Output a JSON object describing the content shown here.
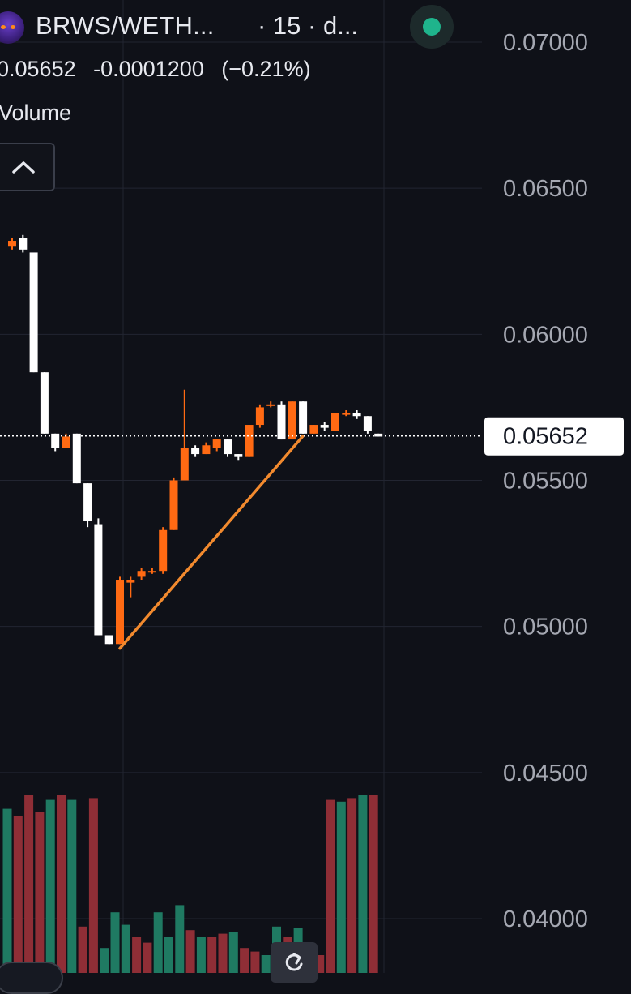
{
  "header": {
    "pair_title": "BRWS/WETH...",
    "interval_text": "· 15 · d...",
    "status_color": "#1fb48c",
    "avatar_icon": "robot-avatar-icon"
  },
  "ohlc": {
    "price": "0.05652",
    "change": "-0.0001200",
    "change_pct": "(−0.21%)"
  },
  "volume_label": "Volume",
  "controls": {
    "collapse_icon": "chevron-up-icon",
    "reset_icon": "reset-rotate-icon"
  },
  "colors": {
    "background": "#0f1118",
    "up_candle": "#ff6a13",
    "down_candle": "#ffffff",
    "volume_up": "#1f7a62",
    "volume_down": "#8f2e36",
    "trendline": "#f28a2e",
    "grid": "#222531",
    "axis_text": "#a5a8b2"
  },
  "chart_data": {
    "type": "candlestick",
    "y_axis": {
      "ticks": [
        "0.07000",
        "0.06500",
        "0.06000",
        "0.05500",
        "0.05000",
        "0.04500",
        "0.04000"
      ],
      "range": [
        0.0385,
        0.0715
      ]
    },
    "current_price_label": "0.05652",
    "candles": [
      {
        "o": 0.063,
        "h": 0.0633,
        "l": 0.0629,
        "c": 0.0632
      },
      {
        "o": 0.0633,
        "h": 0.0634,
        "l": 0.0628,
        "c": 0.0629
      },
      {
        "o": 0.0628,
        "h": 0.0628,
        "l": 0.0587,
        "c": 0.0587
      },
      {
        "o": 0.0587,
        "h": 0.0587,
        "l": 0.0566,
        "c": 0.0566
      },
      {
        "o": 0.0566,
        "h": 0.0566,
        "l": 0.056,
        "c": 0.0561
      },
      {
        "o": 0.0561,
        "h": 0.0566,
        "l": 0.0561,
        "c": 0.0565
      },
      {
        "o": 0.0566,
        "h": 0.0566,
        "l": 0.0549,
        "c": 0.0549
      },
      {
        "o": 0.0549,
        "h": 0.0549,
        "l": 0.0534,
        "c": 0.0536
      },
      {
        "o": 0.0535,
        "h": 0.0537,
        "l": 0.0497,
        "c": 0.0497
      },
      {
        "o": 0.0497,
        "h": 0.0497,
        "l": 0.0494,
        "c": 0.0494
      },
      {
        "o": 0.0494,
        "h": 0.0517,
        "l": 0.0494,
        "c": 0.0516
      },
      {
        "o": 0.0515,
        "h": 0.0517,
        "l": 0.051,
        "c": 0.0516
      },
      {
        "o": 0.0517,
        "h": 0.052,
        "l": 0.0516,
        "c": 0.0519
      },
      {
        "o": 0.0519,
        "h": 0.052,
        "l": 0.0518,
        "c": 0.0519
      },
      {
        "o": 0.0519,
        "h": 0.0534,
        "l": 0.0518,
        "c": 0.0533
      },
      {
        "o": 0.0533,
        "h": 0.0551,
        "l": 0.0533,
        "c": 0.055
      },
      {
        "o": 0.055,
        "h": 0.0581,
        "l": 0.055,
        "c": 0.0561
      },
      {
        "o": 0.0561,
        "h": 0.0562,
        "l": 0.0558,
        "c": 0.0559
      },
      {
        "o": 0.0559,
        "h": 0.0563,
        "l": 0.0559,
        "c": 0.0562
      },
      {
        "o": 0.0561,
        "h": 0.0564,
        "l": 0.056,
        "c": 0.0564
      },
      {
        "o": 0.0564,
        "h": 0.0564,
        "l": 0.0558,
        "c": 0.0559
      },
      {
        "o": 0.0559,
        "h": 0.0559,
        "l": 0.0557,
        "c": 0.0558
      },
      {
        "o": 0.0558,
        "h": 0.0569,
        "l": 0.0558,
        "c": 0.0569
      },
      {
        "o": 0.0569,
        "h": 0.0576,
        "l": 0.0568,
        "c": 0.0575
      },
      {
        "o": 0.0576,
        "h": 0.0577,
        "l": 0.0575,
        "c": 0.0576
      },
      {
        "o": 0.0576,
        "h": 0.0577,
        "l": 0.0564,
        "c": 0.0564
      },
      {
        "o": 0.0564,
        "h": 0.0577,
        "l": 0.0564,
        "c": 0.0577
      },
      {
        "o": 0.0577,
        "h": 0.0577,
        "l": 0.0566,
        "c": 0.0566
      },
      {
        "o": 0.0566,
        "h": 0.0569,
        "l": 0.0566,
        "c": 0.0569
      },
      {
        "o": 0.0569,
        "h": 0.057,
        "l": 0.0567,
        "c": 0.0568
      },
      {
        "o": 0.0567,
        "h": 0.0573,
        "l": 0.0567,
        "c": 0.0573
      },
      {
        "o": 0.0573,
        "h": 0.0574,
        "l": 0.0572,
        "c": 0.0573
      },
      {
        "o": 0.0573,
        "h": 0.0574,
        "l": 0.0571,
        "c": 0.0572
      },
      {
        "o": 0.0572,
        "h": 0.0572,
        "l": 0.0566,
        "c": 0.0567
      },
      {
        "o": 0.0566,
        "h": 0.0566,
        "l": 0.0565,
        "c": 0.0565
      }
    ],
    "volume": [
      {
        "v": 0.92,
        "dir": "up"
      },
      {
        "v": 0.88,
        "dir": "down"
      },
      {
        "v": 1.0,
        "dir": "down"
      },
      {
        "v": 0.9,
        "dir": "down"
      },
      {
        "v": 0.97,
        "dir": "up"
      },
      {
        "v": 1.0,
        "dir": "down"
      },
      {
        "v": 0.97,
        "dir": "up"
      },
      {
        "v": 0.26,
        "dir": "down"
      },
      {
        "v": 0.98,
        "dir": "down"
      },
      {
        "v": 0.14,
        "dir": "up"
      },
      {
        "v": 0.34,
        "dir": "up"
      },
      {
        "v": 0.27,
        "dir": "up"
      },
      {
        "v": 0.2,
        "dir": "down"
      },
      {
        "v": 0.17,
        "dir": "down"
      },
      {
        "v": 0.34,
        "dir": "up"
      },
      {
        "v": 0.2,
        "dir": "up"
      },
      {
        "v": 0.38,
        "dir": "up"
      },
      {
        "v": 0.24,
        "dir": "down"
      },
      {
        "v": 0.2,
        "dir": "up"
      },
      {
        "v": 0.2,
        "dir": "down"
      },
      {
        "v": 0.22,
        "dir": "down"
      },
      {
        "v": 0.23,
        "dir": "up"
      },
      {
        "v": 0.14,
        "dir": "down"
      },
      {
        "v": 0.12,
        "dir": "down"
      },
      {
        "v": 0.1,
        "dir": "up"
      },
      {
        "v": 0.26,
        "dir": "up"
      },
      {
        "v": 0.2,
        "dir": "down"
      },
      {
        "v": 0.25,
        "dir": "up"
      },
      {
        "v": 0.12,
        "dir": "up"
      },
      {
        "v": 0.1,
        "dir": "down"
      },
      {
        "v": 0.97,
        "dir": "down"
      },
      {
        "v": 0.96,
        "dir": "up"
      },
      {
        "v": 0.98,
        "dir": "down"
      },
      {
        "v": 1.0,
        "dir": "up"
      },
      {
        "v": 1.0,
        "dir": "down"
      }
    ],
    "trendline": {
      "from": {
        "candle_index": 10,
        "price": 0.04925
      },
      "to": {
        "candle_index": 27,
        "price": 0.05652
      }
    },
    "grid": true
  }
}
